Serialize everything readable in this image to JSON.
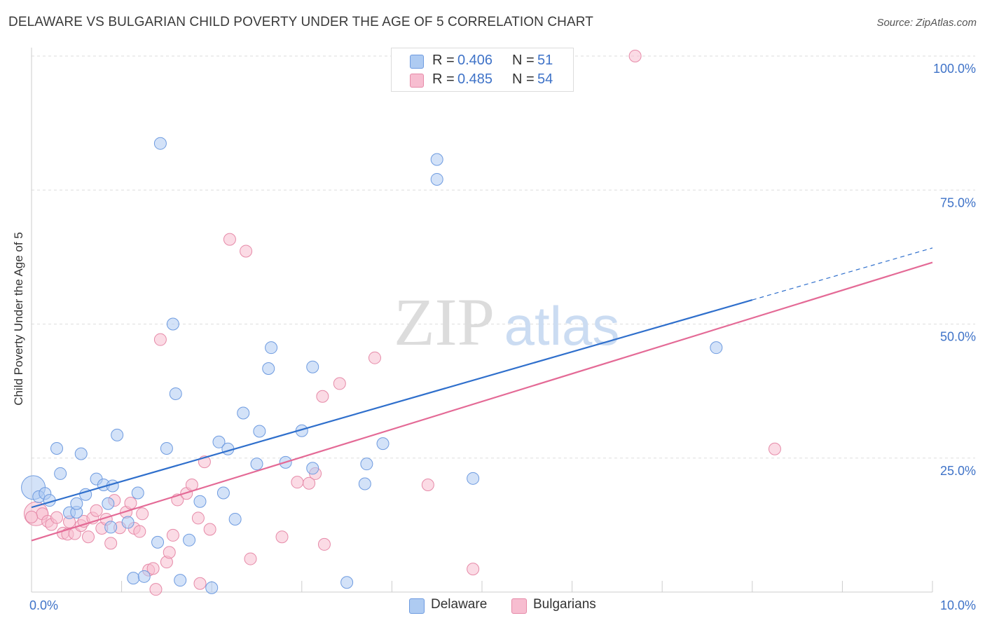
{
  "header": {
    "title": "DELAWARE VS BULGARIAN CHILD POVERTY UNDER THE AGE OF 5 CORRELATION CHART",
    "source": "Source: ZipAtlas.com"
  },
  "watermark": {
    "part1": "ZIP",
    "part2": "atlas"
  },
  "legend": {
    "r_label": "R =",
    "n_label": "N =",
    "items": [
      {
        "name": "Delaware",
        "r": "0.406",
        "n": "51",
        "color": "#aecbf2"
      },
      {
        "name": "Bulgarians",
        "r": "0.485",
        "n": "54",
        "color": "#f7bdd0"
      }
    ]
  },
  "colors": {
    "delaware_fill": "#aecbf2",
    "delaware_stroke": "#6e9be0",
    "delaware_line": "#2f6fcc",
    "bulgarian_fill": "#f7bdd0",
    "bulgarian_stroke": "#e68aa8",
    "bulgarian_line": "#e46a96",
    "tick_label": "#3f73c8",
    "grid": "#dddddd"
  },
  "chart_data": {
    "type": "scatter",
    "title": "DELAWARE VS BULGARIAN CHILD POVERTY UNDER THE AGE OF 5 CORRELATION CHART",
    "xlabel": "",
    "ylabel": "Child Poverty Under the Age of 5",
    "xlim": [
      0,
      10
    ],
    "ylim": [
      0,
      100
    ],
    "x_tick_labels": [
      {
        "value": 0,
        "label": "0.0%"
      },
      {
        "value": 10,
        "label": "10.0%"
      }
    ],
    "y_tick_labels": [
      {
        "value": 25,
        "label": "25.0%"
      },
      {
        "value": 50,
        "label": "50.0%"
      },
      {
        "value": 75,
        "label": "75.0%"
      },
      {
        "value": 100,
        "label": "100.0%"
      }
    ],
    "y_gridlines": [
      25,
      50,
      75,
      100
    ],
    "series": [
      {
        "name": "Delaware",
        "r": 0.406,
        "n": 51,
        "trend": {
          "x0": 0,
          "y0": 15.8,
          "x1": 8.0,
          "y1": 54.5,
          "dash_to_x": 10.0,
          "dash_to_y": 64.2
        },
        "points": [
          {
            "x": 0.02,
            "y": 19.5,
            "big": true
          },
          {
            "x": 0.08,
            "y": 17.8
          },
          {
            "x": 0.15,
            "y": 18.4
          },
          {
            "x": 0.2,
            "y": 17.1
          },
          {
            "x": 0.28,
            "y": 26.8
          },
          {
            "x": 0.32,
            "y": 22.1
          },
          {
            "x": 0.42,
            "y": 14.8
          },
          {
            "x": 0.5,
            "y": 14.9
          },
          {
            "x": 0.5,
            "y": 16.5
          },
          {
            "x": 0.55,
            "y": 25.8
          },
          {
            "x": 0.6,
            "y": 18.2
          },
          {
            "x": 0.72,
            "y": 21.1
          },
          {
            "x": 0.8,
            "y": 20.0
          },
          {
            "x": 0.85,
            "y": 16.5
          },
          {
            "x": 0.88,
            "y": 12.1
          },
          {
            "x": 0.9,
            "y": 19.8
          },
          {
            "x": 0.95,
            "y": 29.3
          },
          {
            "x": 1.07,
            "y": 13.0
          },
          {
            "x": 1.13,
            "y": 2.6
          },
          {
            "x": 1.18,
            "y": 18.5
          },
          {
            "x": 1.25,
            "y": 2.9
          },
          {
            "x": 1.4,
            "y": 9.3
          },
          {
            "x": 1.43,
            "y": 83.7
          },
          {
            "x": 1.5,
            "y": 26.8
          },
          {
            "x": 1.57,
            "y": 50.0
          },
          {
            "x": 1.6,
            "y": 37.0
          },
          {
            "x": 1.65,
            "y": 2.2
          },
          {
            "x": 1.75,
            "y": 9.7
          },
          {
            "x": 1.87,
            "y": 16.9
          },
          {
            "x": 2.0,
            "y": 0.8
          },
          {
            "x": 2.08,
            "y": 28.0
          },
          {
            "x": 2.13,
            "y": 18.5
          },
          {
            "x": 2.18,
            "y": 26.7
          },
          {
            "x": 2.26,
            "y": 13.6
          },
          {
            "x": 2.35,
            "y": 33.4
          },
          {
            "x": 2.5,
            "y": 23.9
          },
          {
            "x": 2.53,
            "y": 30.0
          },
          {
            "x": 2.63,
            "y": 41.7
          },
          {
            "x": 2.66,
            "y": 45.6
          },
          {
            "x": 2.82,
            "y": 24.2
          },
          {
            "x": 3.0,
            "y": 30.1
          },
          {
            "x": 3.12,
            "y": 42.0
          },
          {
            "x": 3.12,
            "y": 23.1
          },
          {
            "x": 3.5,
            "y": 1.8
          },
          {
            "x": 3.7,
            "y": 20.2
          },
          {
            "x": 3.72,
            "y": 23.9
          },
          {
            "x": 3.9,
            "y": 27.7
          },
          {
            "x": 4.5,
            "y": 80.7
          },
          {
            "x": 4.5,
            "y": 77.0
          },
          {
            "x": 4.9,
            "y": 21.2
          },
          {
            "x": 7.6,
            "y": 45.6
          }
        ]
      },
      {
        "name": "Bulgarians",
        "r": 0.485,
        "n": 54,
        "trend": {
          "x0": 0,
          "y0": 9.6,
          "x1": 10.0,
          "y1": 61.5
        },
        "points": [
          {
            "x": 0.05,
            "y": 14.6,
            "big": true
          },
          {
            "x": 0.12,
            "y": 14.6
          },
          {
            "x": 0.18,
            "y": 13.2
          },
          {
            "x": 0.22,
            "y": 12.6
          },
          {
            "x": 0.28,
            "y": 13.9
          },
          {
            "x": 0.35,
            "y": 11.0
          },
          {
            "x": 0.4,
            "y": 10.8
          },
          {
            "x": 0.42,
            "y": 13.1
          },
          {
            "x": 0.48,
            "y": 10.9
          },
          {
            "x": 0.55,
            "y": 12.4
          },
          {
            "x": 0.58,
            "y": 13.2
          },
          {
            "x": 0.63,
            "y": 10.3
          },
          {
            "x": 0.68,
            "y": 13.8
          },
          {
            "x": 0.72,
            "y": 15.2
          },
          {
            "x": 0.78,
            "y": 11.9
          },
          {
            "x": 0.83,
            "y": 13.6
          },
          {
            "x": 0.88,
            "y": 9.1
          },
          {
            "x": 0.92,
            "y": 17.1
          },
          {
            "x": 0.98,
            "y": 12.0
          },
          {
            "x": 1.05,
            "y": 14.9
          },
          {
            "x": 1.1,
            "y": 16.6
          },
          {
            "x": 1.14,
            "y": 11.9
          },
          {
            "x": 1.2,
            "y": 11.3
          },
          {
            "x": 1.23,
            "y": 14.6
          },
          {
            "x": 1.3,
            "y": 4.1
          },
          {
            "x": 1.35,
            "y": 4.4
          },
          {
            "x": 1.38,
            "y": 0.5
          },
          {
            "x": 1.43,
            "y": 47.1
          },
          {
            "x": 1.5,
            "y": 5.6
          },
          {
            "x": 1.53,
            "y": 7.4
          },
          {
            "x": 1.57,
            "y": 10.6
          },
          {
            "x": 1.62,
            "y": 17.2
          },
          {
            "x": 1.72,
            "y": 18.4
          },
          {
            "x": 1.78,
            "y": 20.0
          },
          {
            "x": 1.85,
            "y": 13.8
          },
          {
            "x": 1.87,
            "y": 1.6
          },
          {
            "x": 1.92,
            "y": 24.3
          },
          {
            "x": 1.98,
            "y": 11.7
          },
          {
            "x": 2.2,
            "y": 65.8
          },
          {
            "x": 2.38,
            "y": 63.6
          },
          {
            "x": 2.43,
            "y": 6.2
          },
          {
            "x": 2.78,
            "y": 10.3
          },
          {
            "x": 2.95,
            "y": 20.5
          },
          {
            "x": 3.08,
            "y": 20.3
          },
          {
            "x": 3.15,
            "y": 22.1
          },
          {
            "x": 3.23,
            "y": 36.5
          },
          {
            "x": 3.25,
            "y": 8.9
          },
          {
            "x": 3.42,
            "y": 38.9
          },
          {
            "x": 3.81,
            "y": 43.7
          },
          {
            "x": 4.4,
            "y": 20.0
          },
          {
            "x": 4.9,
            "y": 4.3
          },
          {
            "x": 6.7,
            "y": 100.0
          },
          {
            "x": 8.25,
            "y": 26.7
          },
          {
            "x": 0.0,
            "y": 14.0
          }
        ]
      }
    ]
  }
}
